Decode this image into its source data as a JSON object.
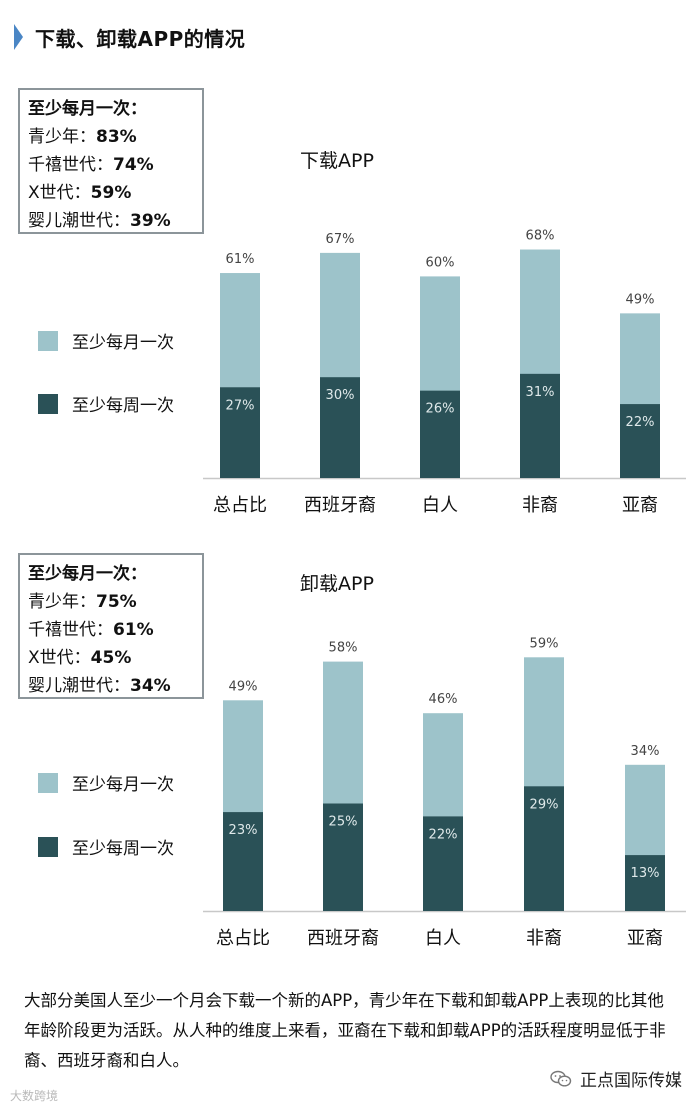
{
  "header": {
    "title": "下载、卸载APP的情况"
  },
  "colors": {
    "monthly": "#9dc3ca",
    "weekly": "#2a5157",
    "accent": "#4a86c5",
    "axis": "#c8c8c8"
  },
  "charts": [
    {
      "stats": {
        "heading": "至少每月一次：",
        "rows": [
          {
            "label": "青少年：",
            "value": "83%"
          },
          {
            "label": "千禧世代：",
            "value": "74%"
          },
          {
            "label": "X世代：",
            "value": "59%"
          },
          {
            "label": "婴儿潮世代：",
            "value": "39%"
          }
        ]
      },
      "legend": {
        "monthly": "至少每月一次",
        "weekly": "至少每周一次"
      }
    },
    {
      "stats": {
        "heading": "至少每月一次：",
        "rows": [
          {
            "label": "青少年：",
            "value": "75%"
          },
          {
            "label": "千禧世代：",
            "value": "61%"
          },
          {
            "label": "X世代：",
            "value": "45%"
          },
          {
            "label": "婴儿潮世代：",
            "value": "34%"
          }
        ]
      },
      "legend": {
        "monthly": "至少每月一次",
        "weekly": "至少每周一次"
      }
    }
  ],
  "chart_data": [
    {
      "type": "bar",
      "title": "下载APP",
      "categories": [
        "总占比",
        "西班牙裔",
        "白人",
        "非裔",
        "亚裔"
      ],
      "series": [
        {
          "name": "至少每月一次",
          "values": [
            61,
            67,
            60,
            68,
            49
          ]
        },
        {
          "name": "至少每周一次",
          "values": [
            27,
            30,
            26,
            31,
            22
          ]
        }
      ],
      "ylim": [
        0,
        100
      ],
      "unit": "%",
      "legend_position": "left",
      "grid": false
    },
    {
      "type": "bar",
      "title": "卸载APP",
      "categories": [
        "总占比",
        "西班牙裔",
        "白人",
        "非裔",
        "亚裔"
      ],
      "series": [
        {
          "name": "至少每月一次",
          "values": [
            49,
            58,
            46,
            59,
            34
          ]
        },
        {
          "name": "至少每周一次",
          "values": [
            23,
            25,
            22,
            29,
            13
          ]
        }
      ],
      "ylim": [
        0,
        100
      ],
      "unit": "%",
      "legend_position": "left",
      "grid": false
    }
  ],
  "note": "大部分美国人至少一个月会下载一个新的APP，青少年在下载和卸载APP上表现的比其他年龄阶段更为活跃。从人种的维度上来看，亚裔在下载和卸载APP的活跃程度明显低于非裔、西班牙裔和白人。",
  "footer": {
    "left_watermark": "大数跨境",
    "right_brand": "正点国际传媒"
  }
}
